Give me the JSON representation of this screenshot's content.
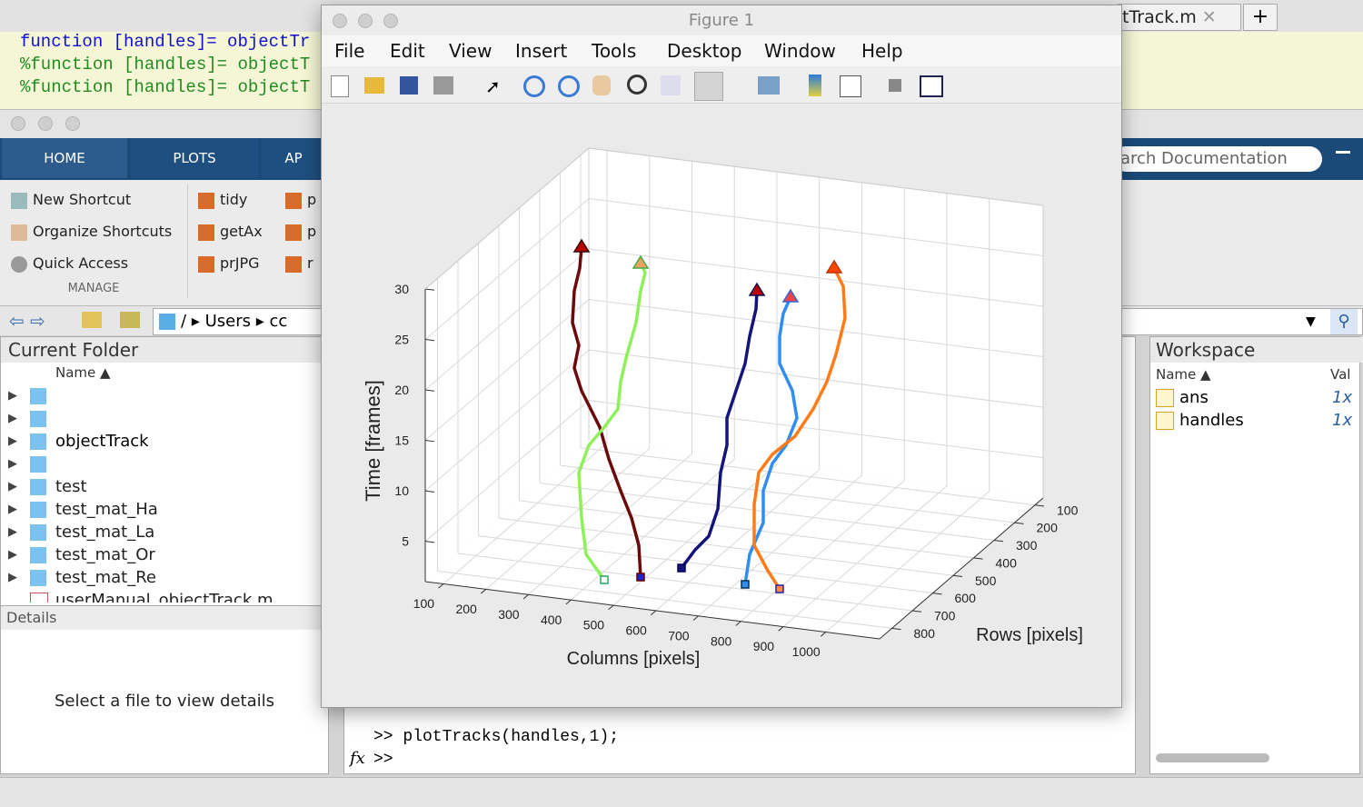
{
  "editor": {
    "lines": [
      "function [handles]= objectTr",
      "%function [handles]= objectT",
      "%function [handles]= objectT"
    ],
    "tab": "tTrack.m",
    "new_tab": "+"
  },
  "toolstrip": {
    "tabs": [
      "HOME",
      "PLOTS",
      "AP"
    ],
    "search": "arch Documentation",
    "shortcuts": [
      "New Shortcut",
      "Organize Shortcuts",
      "Quick Access"
    ],
    "section": "MANAGE",
    "favorites": [
      "tidy",
      "getAx",
      "prJPG"
    ],
    "favorites_more": [
      "p",
      "p",
      "r"
    ]
  },
  "address": {
    "root": "/",
    "parts": [
      "Users",
      "cc"
    ]
  },
  "current_folder": {
    "title": "Current Folder",
    "column": "Name ▲",
    "items": [
      "objectTrack",
      "test",
      "test_mat_Ha",
      "test_mat_La",
      "test_mat_Or",
      "test_mat_Re",
      "userManual_objectTrack.m"
    ]
  },
  "details": {
    "title": "Details",
    "message": "Select a file to view details"
  },
  "command_window": {
    "fx": "fx",
    "lines": [
      ">> plotTracks(handles,1);",
      ">>"
    ]
  },
  "workspace": {
    "title": "Workspace",
    "columns": [
      "Name ▲",
      "Val"
    ],
    "rows": [
      [
        "ans",
        "1x"
      ],
      [
        "handles",
        "1x"
      ]
    ]
  },
  "figure": {
    "title": "Figure 1",
    "menu": [
      "File",
      "Edit",
      "View",
      "Insert",
      "Tools",
      "Desktop",
      "Window",
      "Help"
    ],
    "axes": {
      "xlabel": "Columns [pixels]",
      "ylabel": "Rows [pixels]",
      "zlabel": "Time [frames]",
      "xticks": [
        100,
        200,
        300,
        400,
        500,
        600,
        700,
        800,
        900,
        1000
      ],
      "yticks": [
        100,
        200,
        300,
        400,
        500,
        600,
        700,
        800
      ],
      "zticks": [
        5,
        10,
        15,
        20,
        25,
        30
      ]
    }
  }
}
